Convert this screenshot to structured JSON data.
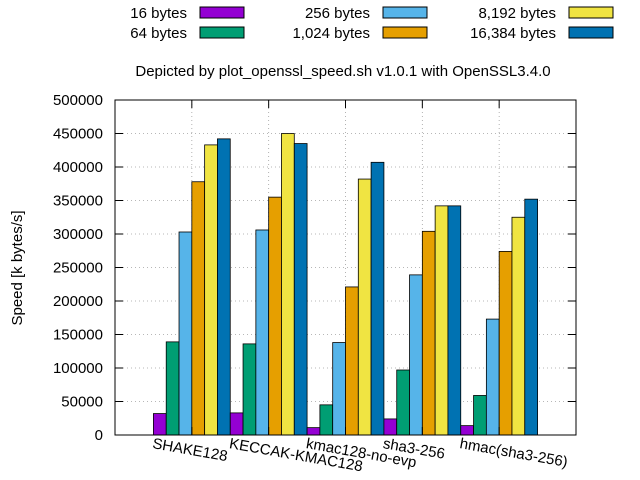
{
  "chart_data": {
    "type": "bar",
    "title": "Depicted by plot_openssl_speed.sh v1.0.1 with OpenSSL3.4.0",
    "xlabel": "",
    "ylabel": "Speed [k bytes/s]",
    "ylim": [
      0,
      500000
    ],
    "yticks": [
      0,
      50000,
      100000,
      150000,
      200000,
      250000,
      300000,
      350000,
      400000,
      450000,
      500000
    ],
    "grid": true,
    "legend_position": "top",
    "categories": [
      "SHAKE128",
      "KECCAK-KMAC128",
      "kmac128-no-evp",
      "sha3-256",
      "hmac(sha3-256)"
    ],
    "series": [
      {
        "name": "16 bytes",
        "color": "#9400d3",
        "values": [
          32000,
          33000,
          11000,
          24000,
          14000
        ]
      },
      {
        "name": "64 bytes",
        "color": "#009e73",
        "values": [
          139000,
          136000,
          45000,
          97000,
          59000
        ]
      },
      {
        "name": "256 bytes",
        "color": "#56b4e9",
        "values": [
          303000,
          306000,
          138000,
          239000,
          173000
        ]
      },
      {
        "name": "1,024 bytes",
        "color": "#e69f00",
        "values": [
          378000,
          355000,
          221000,
          304000,
          274000
        ]
      },
      {
        "name": "8,192 bytes",
        "color": "#f0e442",
        "values": [
          433000,
          450000,
          382000,
          342000,
          325000
        ]
      },
      {
        "name": "16,384 bytes",
        "color": "#0072b2",
        "values": [
          442000,
          435000,
          407000,
          342000,
          352000
        ]
      }
    ]
  }
}
